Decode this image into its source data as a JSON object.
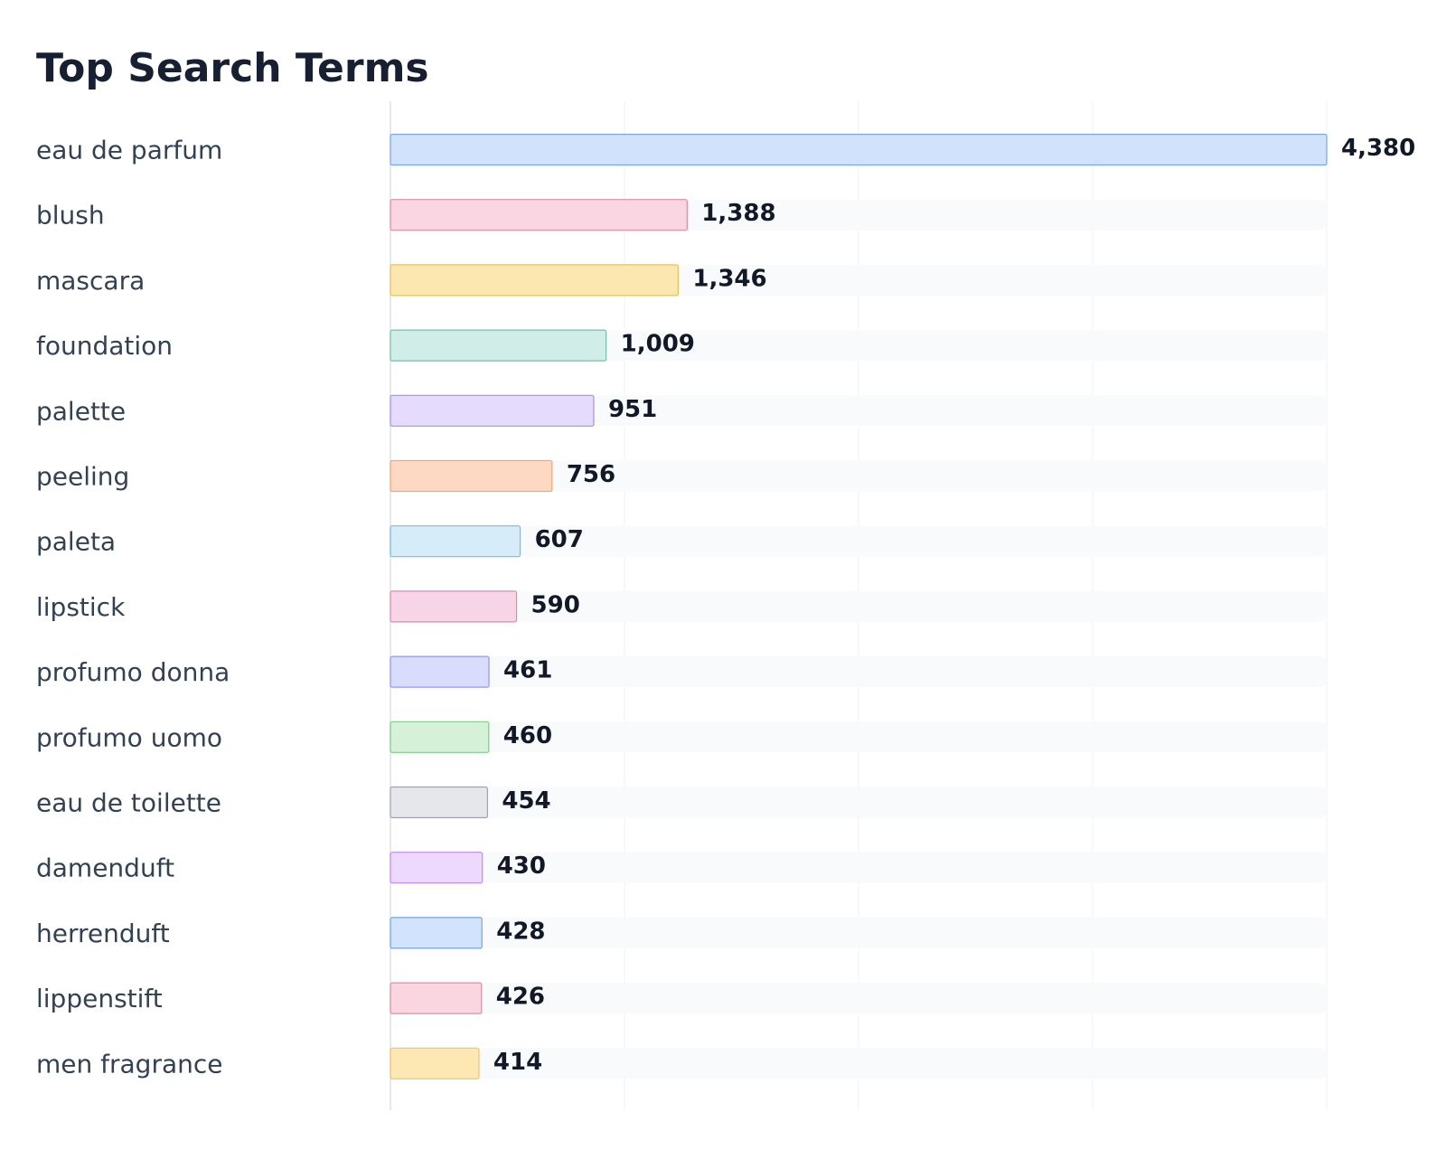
{
  "chart_data": {
    "type": "bar",
    "orientation": "horizontal",
    "title": "Top Search Terms",
    "xlabel": "",
    "ylabel": "",
    "xlim": [
      0,
      4380
    ],
    "grid": true,
    "legend": "none",
    "categories": [
      "eau de parfum",
      "blush",
      "mascara",
      "foundation",
      "palette",
      "peeling",
      "paleta",
      "lipstick",
      "profumo donna",
      "profumo uomo",
      "eau de toilette",
      "damenduft",
      "herrenduft",
      "lippenstift",
      "men fragrance"
    ],
    "values": [
      4380,
      1388,
      1346,
      1009,
      951,
      756,
      607,
      590,
      461,
      460,
      454,
      430,
      428,
      426,
      414
    ],
    "value_labels": [
      "4,380",
      "1,388",
      "1,346",
      "1,009",
      "951",
      "756",
      "607",
      "590",
      "461",
      "460",
      "454",
      "430",
      "428",
      "426",
      "414"
    ],
    "bar_colors": [
      {
        "fill": "#d1e2fc",
        "stroke": "#7aa7e6"
      },
      {
        "fill": "#f9d6e1",
        "stroke": "#e08aa6"
      },
      {
        "fill": "#fde7b1",
        "stroke": "#e8c05b"
      },
      {
        "fill": "#d0eee7",
        "stroke": "#6ec3ab"
      },
      {
        "fill": "#e4dbfd",
        "stroke": "#a98ded"
      },
      {
        "fill": "#fdd9c4",
        "stroke": "#f0a678"
      },
      {
        "fill": "#d6ecf8",
        "stroke": "#76bcdf"
      },
      {
        "fill": "#f7d5e6",
        "stroke": "#dc8ab5"
      },
      {
        "fill": "#d9dcfd",
        "stroke": "#9099ee"
      },
      {
        "fill": "#d5f1d8",
        "stroke": "#7ecb89"
      },
      {
        "fill": "#e5e7eb",
        "stroke": "#9ca3af"
      },
      {
        "fill": "#ecd9fd",
        "stroke": "#c08af0"
      },
      {
        "fill": "#d2e4fd",
        "stroke": "#6fa3ea"
      },
      {
        "fill": "#f9d6e0",
        "stroke": "#de8ca3"
      },
      {
        "fill": "#fde8b3",
        "stroke": "#ecc666"
      }
    ],
    "track_color": "#f8fafc",
    "grid_color": "#f0f2f5"
  }
}
